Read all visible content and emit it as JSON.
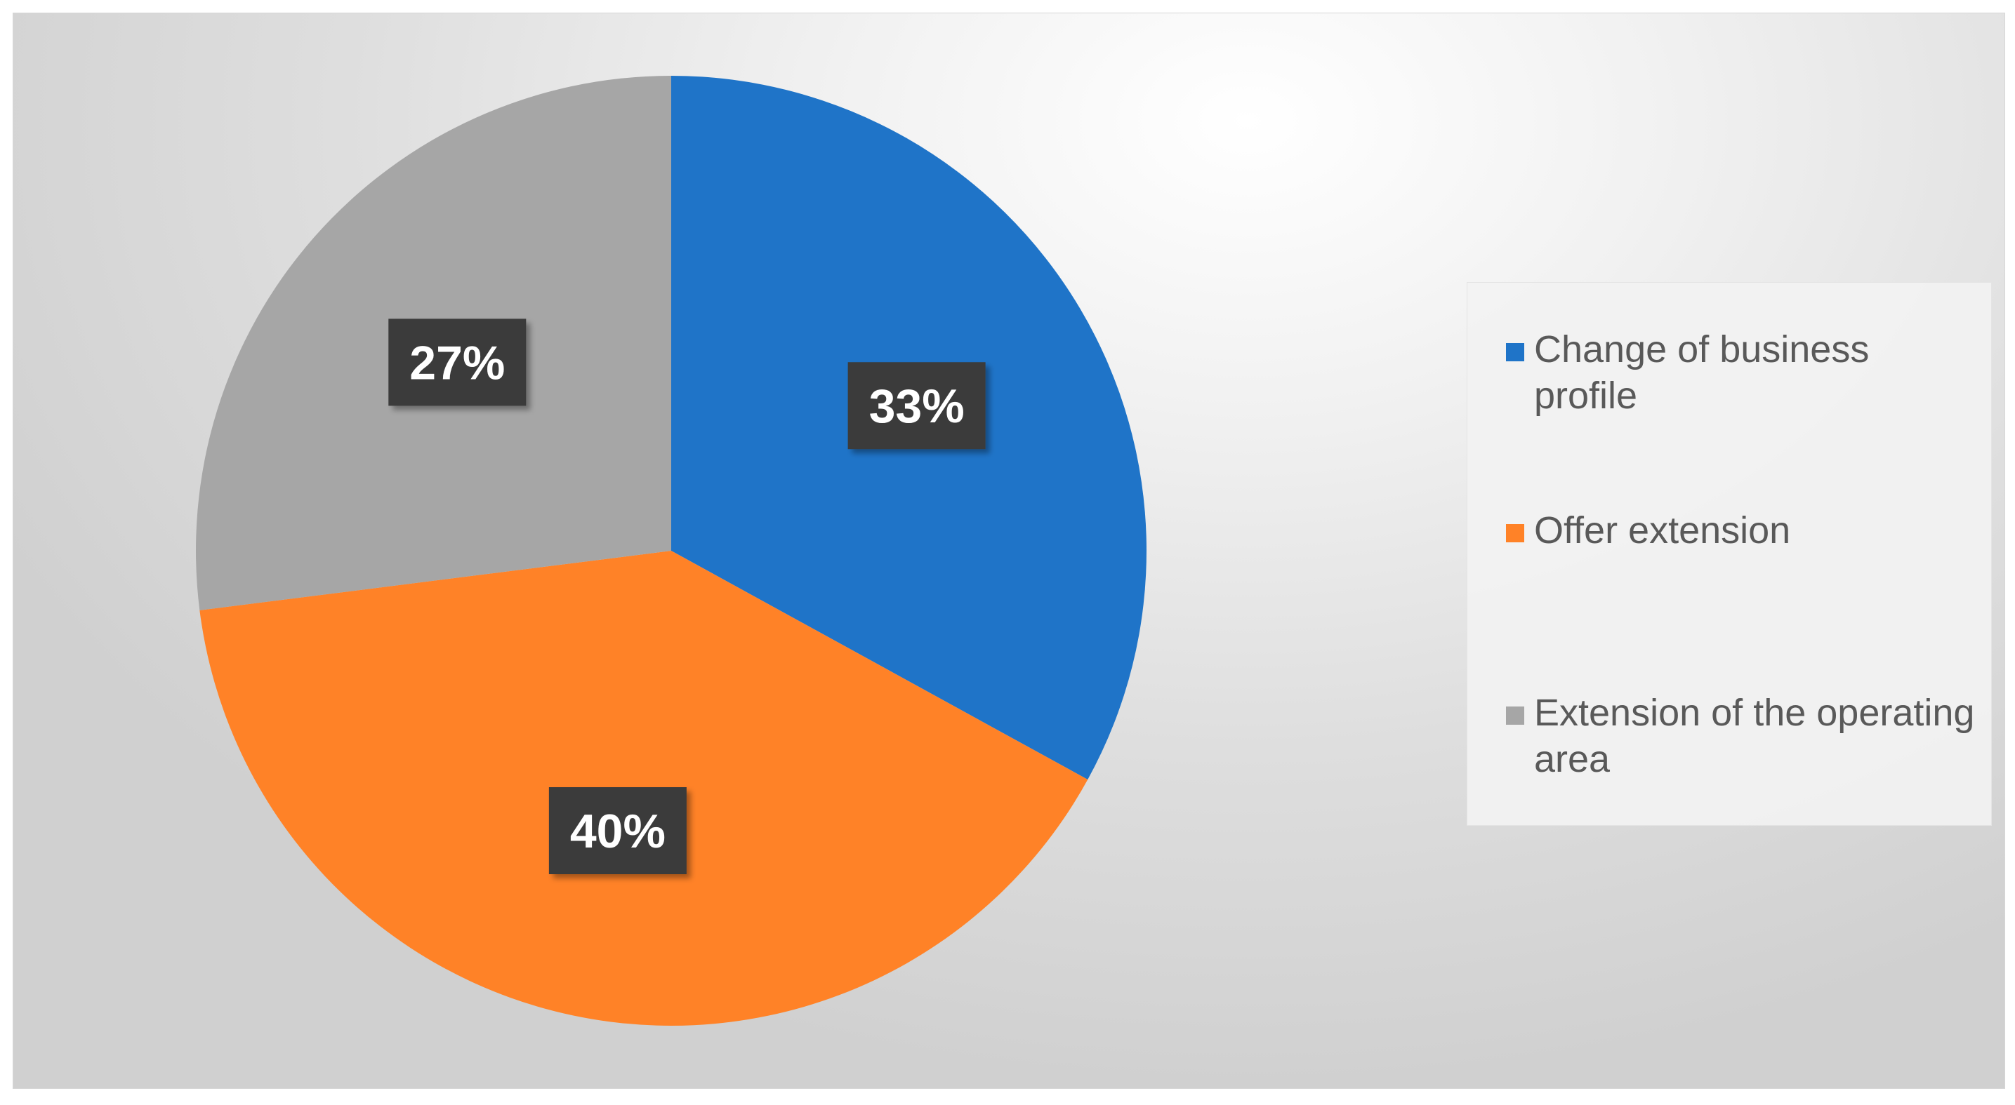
{
  "chart_data": {
    "type": "pie",
    "title": "",
    "categories": [
      "Change of business profile",
      "Offer extension",
      "Extension of the operating area"
    ],
    "values": [
      33,
      40,
      27
    ],
    "data_labels": [
      "33%",
      "40%",
      "27%"
    ],
    "colors": [
      "#1F74C8",
      "#FF8227",
      "#A6A6A6"
    ],
    "legend_position": "right",
    "label_style": {
      "box_color": "#3B3B3B",
      "text_color": "#FFFFFF"
    }
  }
}
